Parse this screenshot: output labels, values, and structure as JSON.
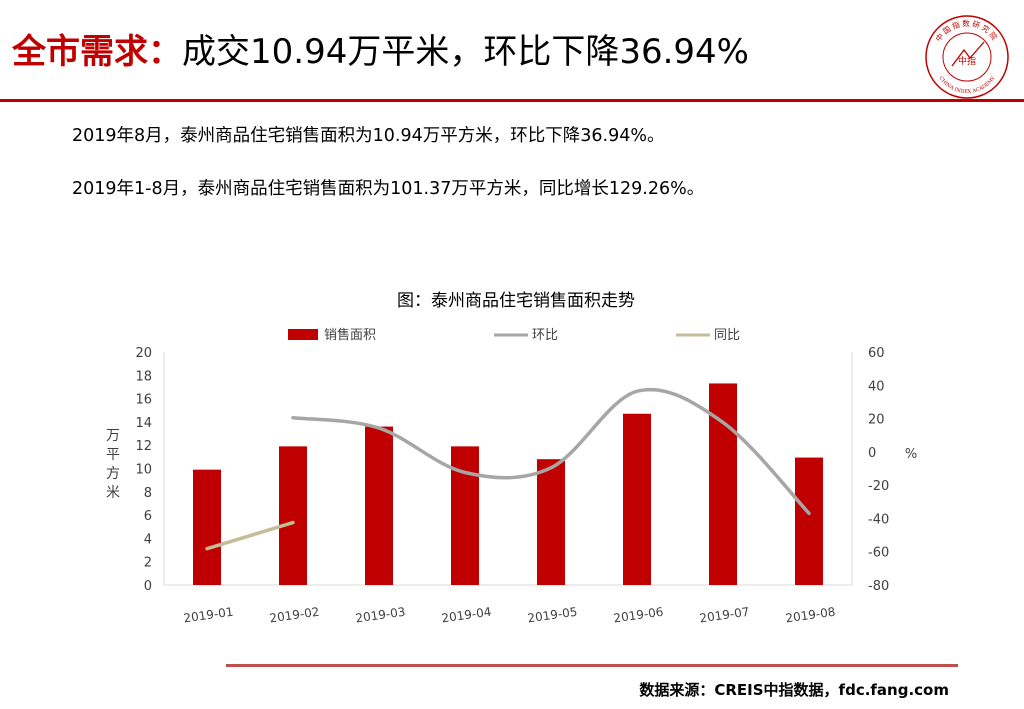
{
  "header": {
    "title_prefix": "全市需求：",
    "title_rest": "成交10.94万平米，环比下降36.94%",
    "logo_text_top": "中国指数研究院",
    "logo_text_bottom": "CHINA INDEX ACADEMY",
    "logo_center": "中指"
  },
  "body": {
    "line1": "2019年8月，泰州商品住宅销售面积为10.94万平方米，环比下降36.94%。",
    "line2": "2019年1-8月，泰州商品住宅销售面积为101.37万平方米，同比增长129.26%。"
  },
  "chart_data": {
    "type": "bar",
    "title": "图：泰州商品住宅销售面积走势",
    "categories": [
      "2019-01",
      "2019-02",
      "2019-03",
      "2019-04",
      "2019-05",
      "2019-06",
      "2019-07",
      "2019-08"
    ],
    "ylabel": "万平方米",
    "y2label": "%",
    "ylim": [
      0,
      20
    ],
    "yticks": [
      0,
      2,
      4,
      6,
      8,
      10,
      12,
      14,
      16,
      18,
      20
    ],
    "y2lim": [
      -80,
      60
    ],
    "y2ticks": [
      -80,
      -60,
      -40,
      -20,
      0,
      20,
      40,
      60
    ],
    "legend_placement": "top",
    "grid": false,
    "series": [
      {
        "name": "销售面积",
        "type": "bar",
        "axis": "left",
        "color": "#c00000",
        "values": [
          9.9,
          11.9,
          13.6,
          11.9,
          10.8,
          14.7,
          17.3,
          10.94
        ]
      },
      {
        "name": "环比",
        "type": "line",
        "axis": "right",
        "color": "#a6a6a6",
        "values": [
          null,
          20.5,
          14.3,
          -12.4,
          -9.6,
          36.4,
          17.7,
          -36.94
        ]
      },
      {
        "name": "同比",
        "type": "line",
        "axis": "right",
        "color": "#c4bd97",
        "values": [
          -58.2,
          -42.5,
          null,
          null,
          null,
          null,
          null,
          null
        ]
      }
    ]
  },
  "footer": {
    "source": "数据来源：CREIS中指数据，fdc.fang.com"
  }
}
